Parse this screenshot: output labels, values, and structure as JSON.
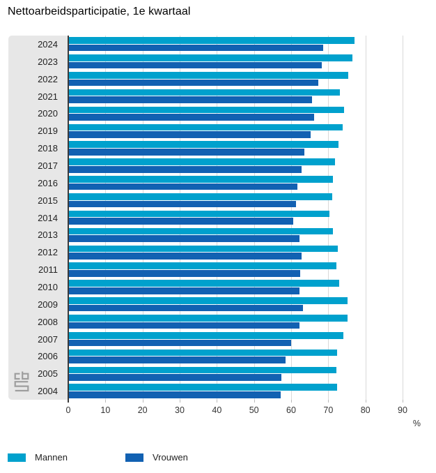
{
  "title": "Nettoarbeidsparticipatie, 1e kwartaal",
  "colors": {
    "mannen": "#00a1cd",
    "vrouwen": "#1261b2",
    "band_bg": "#e7e7e7",
    "gridline": "#d9d9d9",
    "axis_line": "#3a3a3a",
    "logo_gray": "#9e9e9e"
  },
  "legend": {
    "items": [
      {
        "label": "Mannen",
        "color": "#00a1cd"
      },
      {
        "label": "Vrouwen",
        "color": "#1261b2"
      }
    ],
    "position": "bottom"
  },
  "chart_data": {
    "type": "bar",
    "orientation": "horizontal",
    "title": "Nettoarbeidsparticipatie, 1e kwartaal",
    "categories": [
      "2024",
      "2023",
      "2022",
      "2021",
      "2020",
      "2019",
      "2018",
      "2017",
      "2016",
      "2015",
      "2014",
      "2013",
      "2012",
      "2011",
      "2010",
      "2009",
      "2008",
      "2007",
      "2006",
      "2005",
      "2004"
    ],
    "series": [
      {
        "name": "Mannen",
        "color": "#00a1cd",
        "values": [
          77.0,
          76.5,
          75.3,
          73.2,
          74.2,
          73.8,
          72.7,
          71.8,
          71.2,
          71.0,
          70.4,
          71.3,
          72.5,
          72.2,
          73.0,
          75.1,
          75.1,
          74.0,
          72.4,
          72.1,
          72.4
        ]
      },
      {
        "name": "Vrouwen",
        "color": "#1261b2",
        "values": [
          68.7,
          68.2,
          67.3,
          65.6,
          66.1,
          65.3,
          63.6,
          62.8,
          61.6,
          61.3,
          60.5,
          62.2,
          62.9,
          62.5,
          62.3,
          63.2,
          62.3,
          60.0,
          58.5,
          57.4,
          57.1
        ]
      }
    ],
    "xlabel": "%",
    "xlim": [
      0,
      90
    ],
    "xticks": [
      0,
      10,
      20,
      30,
      40,
      50,
      60,
      70,
      80,
      90
    ],
    "grid": true,
    "legend_position": "bottom"
  }
}
